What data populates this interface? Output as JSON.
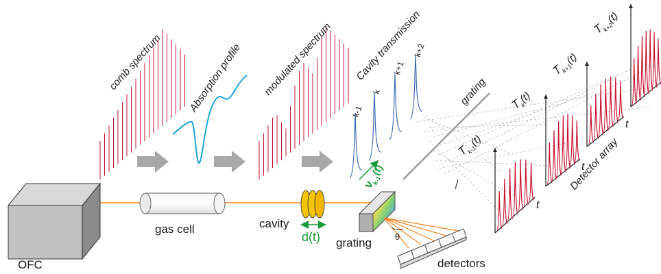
{
  "labels": {
    "ofc": "OFC",
    "gas_cell": "gas cell",
    "cavity": "cavity",
    "cavity_length": "d(t)",
    "grating_bottom": "grating",
    "grating_top": "grating",
    "detectors": "detectors",
    "theta": "θ",
    "comb_spectrum": "comb spectrum",
    "absorption_profile": "Absorption profile",
    "modulated_spectrum": "modulated spectrum",
    "cavity_transmission": "Cavity transmission",
    "detector_array": "Detector array",
    "scan_frequency": "ν",
    "scan_frequency_sub": "k-1",
    "scan_frequency_arg": "(t)",
    "time_axis": "t"
  },
  "cavity_peaks": [
    "k-1",
    "k",
    "k+1",
    "k+2"
  ],
  "detector_signals": [
    {
      "symbol": "T",
      "sub": "k-1",
      "arg": "(t)"
    },
    {
      "symbol": "T",
      "sub": "k",
      "arg": "(t)"
    },
    {
      "symbol": "T",
      "sub": "k+1",
      "arg": "(t)"
    },
    {
      "symbol": "T",
      "sub": "k+2",
      "arg": "(t)"
    }
  ],
  "colors": {
    "comb_lines": "#c8102e",
    "absorption_curve": "#1fa3d6",
    "beam": "#f0841e",
    "cavity_plate": "#f5c400",
    "cavity_length_arrow": "#1a9a3a",
    "transmission_peaks": "#3c6ab4",
    "grey_arrows": "#a8a8a8",
    "trace_lines": "#b0b0b0"
  },
  "icons": [
    "ofc-box-icon",
    "gas-cell-icon",
    "cavity-plates-icon",
    "grating-icon",
    "detector-array-icon",
    "process-arrow-icon"
  ]
}
